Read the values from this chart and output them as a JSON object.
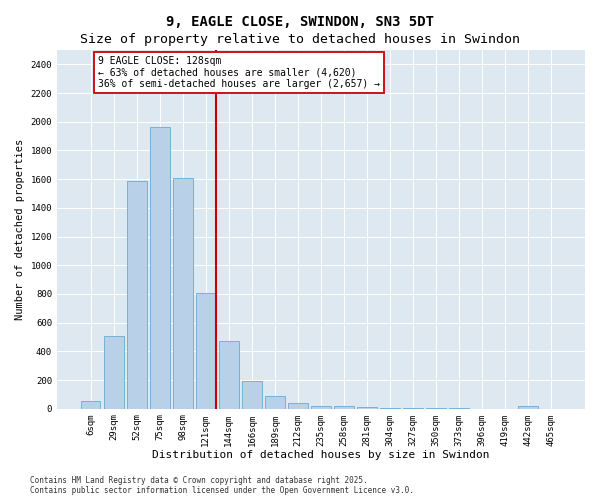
{
  "title1": "9, EAGLE CLOSE, SWINDON, SN3 5DT",
  "title2": "Size of property relative to detached houses in Swindon",
  "xlabel": "Distribution of detached houses by size in Swindon",
  "ylabel": "Number of detached properties",
  "categories": [
    "6sqm",
    "29sqm",
    "52sqm",
    "75sqm",
    "98sqm",
    "121sqm",
    "144sqm",
    "166sqm",
    "189sqm",
    "212sqm",
    "235sqm",
    "258sqm",
    "281sqm",
    "304sqm",
    "327sqm",
    "350sqm",
    "373sqm",
    "396sqm",
    "419sqm",
    "442sqm",
    "465sqm"
  ],
  "values": [
    55,
    510,
    1590,
    1960,
    1610,
    805,
    475,
    195,
    90,
    40,
    22,
    18,
    10,
    8,
    5,
    3,
    2,
    1,
    1,
    22,
    0
  ],
  "bar_color": "#b8d0e8",
  "bar_edge_color": "#6aaad4",
  "vline_color": "#cc0000",
  "vline_idx": 5,
  "annotation_text": "9 EAGLE CLOSE: 128sqm\n← 63% of detached houses are smaller (4,620)\n36% of semi-detached houses are larger (2,657) →",
  "annotation_box_color": "#cc0000",
  "ylim": [
    0,
    2500
  ],
  "yticks": [
    0,
    200,
    400,
    600,
    800,
    1000,
    1200,
    1400,
    1600,
    1800,
    2000,
    2200,
    2400
  ],
  "background_color": "#dde8f0",
  "footer": "Contains HM Land Registry data © Crown copyright and database right 2025.\nContains public sector information licensed under the Open Government Licence v3.0.",
  "title_fontsize": 10,
  "axis_label_fontsize": 7.5,
  "tick_fontsize": 6.5,
  "annotation_fontsize": 7,
  "footer_fontsize": 5.5
}
